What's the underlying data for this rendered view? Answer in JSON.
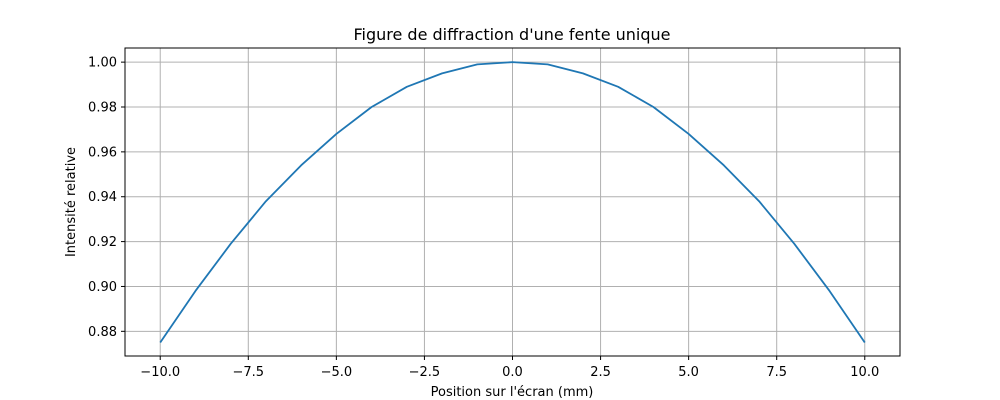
{
  "chart_data": {
    "type": "line",
    "title": "Figure de diffraction d'une fente unique",
    "xlabel": "Position sur l'écran (mm)",
    "ylabel": "Intensité relative",
    "xlim": [
      -11,
      11
    ],
    "ylim": [
      0.869,
      1.0063
    ],
    "grid": true,
    "x_ticks": [
      -10.0,
      -7.5,
      -5.0,
      -2.5,
      0.0,
      2.5,
      5.0,
      7.5,
      10.0
    ],
    "x_tick_labels": [
      "−10.0",
      "−7.5",
      "−5.0",
      "−2.5",
      "0.0",
      "2.5",
      "5.0",
      "7.5",
      "10.0"
    ],
    "y_ticks": [
      0.88,
      0.9,
      0.92,
      0.94,
      0.96,
      0.98,
      1.0
    ],
    "y_tick_labels": [
      "0.88",
      "0.90",
      "0.92",
      "0.94",
      "0.96",
      "0.98",
      "1.00"
    ],
    "series": [
      {
        "color": "#1f77b4",
        "x": [
          -10,
          -9,
          -8,
          -7,
          -6,
          -5,
          -4,
          -3,
          -2,
          -1,
          0,
          1,
          2,
          3,
          4,
          5,
          6,
          7,
          8,
          9,
          10
        ],
        "y": [
          0.875,
          0.898,
          0.919,
          0.938,
          0.954,
          0.968,
          0.98,
          0.989,
          0.995,
          0.999,
          1.0,
          0.999,
          0.995,
          0.989,
          0.98,
          0.968,
          0.954,
          0.938,
          0.919,
          0.898,
          0.875
        ]
      }
    ]
  }
}
